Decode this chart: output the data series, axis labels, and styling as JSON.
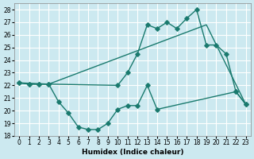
{
  "xlabel": "Humidex (Indice chaleur)",
  "background_color": "#cce9f0",
  "grid_color": "#ffffff",
  "line_color": "#1a7a6e",
  "xlim": [
    -0.5,
    23.5
  ],
  "ylim": [
    18,
    28.5
  ],
  "yticks": [
    18,
    19,
    20,
    21,
    22,
    23,
    24,
    25,
    26,
    27,
    28
  ],
  "xticks": [
    0,
    1,
    2,
    3,
    4,
    5,
    6,
    7,
    8,
    9,
    10,
    11,
    12,
    13,
    14,
    15,
    16,
    17,
    18,
    19,
    20,
    21,
    22,
    23
  ],
  "series1_x": [
    0,
    1,
    2,
    3,
    4,
    5,
    6,
    7,
    8,
    9,
    10,
    11,
    12,
    13,
    14,
    22,
    23
  ],
  "series1_y": [
    22.2,
    22.1,
    22.1,
    22.1,
    20.7,
    19.8,
    18.7,
    18.5,
    18.5,
    19.0,
    20.1,
    20.4,
    20.4,
    22.0,
    20.1,
    21.5,
    20.5
  ],
  "series2_x": [
    0,
    1,
    2,
    3,
    10,
    11,
    12,
    13,
    14,
    15,
    16,
    17,
    18,
    19,
    20,
    21,
    22,
    23
  ],
  "series2_y": [
    22.2,
    22.1,
    22.1,
    22.1,
    22.0,
    23.0,
    24.5,
    26.8,
    26.5,
    27.0,
    26.5,
    27.3,
    28.0,
    25.2,
    25.2,
    24.5,
    21.5,
    20.5
  ],
  "series3_x": [
    0,
    3,
    19,
    23
  ],
  "series3_y": [
    22.2,
    22.1,
    26.8,
    20.5
  ]
}
